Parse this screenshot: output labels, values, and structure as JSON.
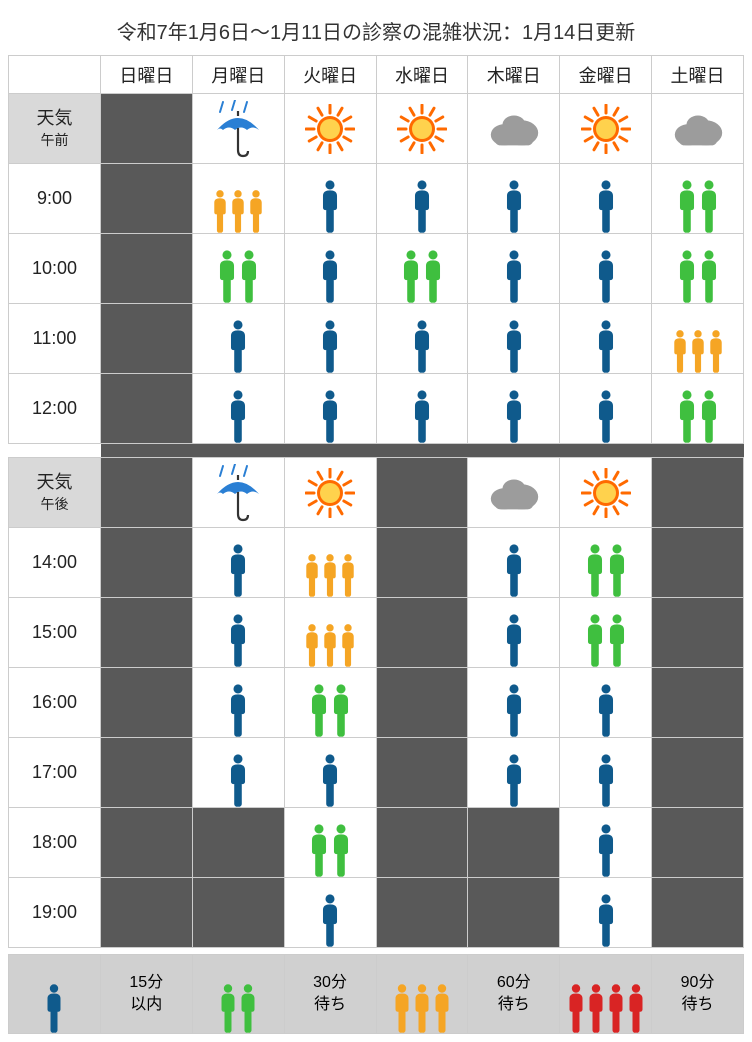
{
  "title": "令和7年1月6日〜1月11日の診察の混雑状況：1月14日更新",
  "days": [
    "日曜日",
    "月曜日",
    "火曜日",
    "水曜日",
    "木曜日",
    "金曜日",
    "土曜日"
  ],
  "weather_label": "天気",
  "am_label": "午前",
  "pm_label": "午後",
  "am_times": [
    "9:00",
    "10:00",
    "11:00",
    "12:00"
  ],
  "pm_times": [
    "14:00",
    "15:00",
    "16:00",
    "17:00",
    "18:00",
    "19:00"
  ],
  "weather_am": [
    "closed",
    "rain",
    "sun",
    "sun",
    "cloud",
    "sun",
    "cloud"
  ],
  "weather_pm": [
    "closed",
    "rain",
    "sun",
    "closed",
    "cloud",
    "sun",
    "closed"
  ],
  "grid_am": [
    [
      "closed",
      "orange3",
      "blue1",
      "blue1",
      "blue1",
      "blue1",
      "green2"
    ],
    [
      "closed",
      "green2",
      "blue1",
      "green2",
      "blue1",
      "blue1",
      "green2"
    ],
    [
      "closed",
      "blue1",
      "blue1",
      "blue1",
      "blue1",
      "blue1",
      "orange3"
    ],
    [
      "closed",
      "blue1",
      "blue1",
      "blue1",
      "blue1",
      "blue1",
      "green2"
    ]
  ],
  "grid_pm": [
    [
      "closed",
      "blue1",
      "orange3",
      "closed",
      "blue1",
      "green2",
      "closed"
    ],
    [
      "closed",
      "blue1",
      "orange3",
      "closed",
      "blue1",
      "green2",
      "closed"
    ],
    [
      "closed",
      "blue1",
      "green2",
      "closed",
      "blue1",
      "blue1",
      "closed"
    ],
    [
      "closed",
      "blue1",
      "blue1",
      "closed",
      "blue1",
      "blue1",
      "closed"
    ],
    [
      "closed",
      "closed",
      "green2",
      "closed",
      "closed",
      "blue1",
      "closed"
    ],
    [
      "closed",
      "closed",
      "blue1",
      "closed",
      "closed",
      "blue1",
      "closed"
    ]
  ],
  "colors": {
    "blue": "#0f5a8c",
    "green": "#3fbf3f",
    "orange": "#f5a524",
    "red": "#d92424",
    "cloud": "#9c9c9c",
    "sun_outer": "#ff6a00",
    "sun_inner": "#ffd24d",
    "umbrella": "#2a7fd4",
    "closed_bg": "#595959",
    "legend_bg": "#d0d0d0"
  },
  "crowd_map": {
    "blue1": {
      "color": "blue",
      "count": 1
    },
    "green2": {
      "color": "green",
      "count": 2
    },
    "orange3": {
      "color": "orange",
      "count": 3
    },
    "red4": {
      "color": "red",
      "count": 4
    }
  },
  "legend": [
    {
      "icon": "blue1",
      "text1": "15分",
      "text2": "以内"
    },
    {
      "icon": "green2",
      "text1": "30分",
      "text2": "待ち"
    },
    {
      "icon": "orange3",
      "text1": "60分",
      "text2": "待ち"
    },
    {
      "icon": "red4",
      "text1": "90分",
      "text2": "待ち"
    }
  ]
}
